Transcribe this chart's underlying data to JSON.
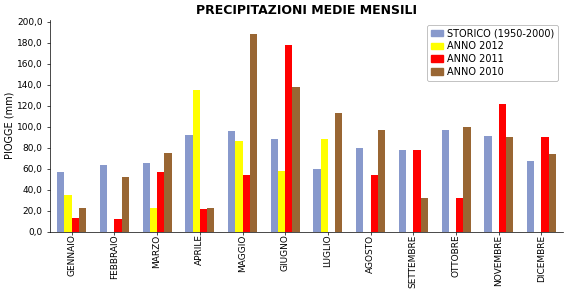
{
  "title": "PRECIPITAZIONI MEDIE MENSILI",
  "ylabel": "PIOGGE (mm)",
  "categories": [
    "GENNAIO",
    "FEBBRAIO",
    "MARZO",
    "APRILE",
    "MAGGIO",
    "GIUGNO",
    "LUGLIO",
    "AGOSTO",
    "SETTEMBRE",
    "OTTOBRE",
    "NOVEMBRE",
    "DICEMBRE"
  ],
  "series": {
    "STORICO (1950-2000)": [
      57,
      64,
      65,
      92,
      96,
      88,
      60,
      80,
      78,
      97,
      91,
      67
    ],
    "ANNO 2012": [
      35,
      0,
      23,
      135,
      86,
      58,
      88,
      0,
      0,
      0,
      0,
      0
    ],
    "ANNO 2011": [
      13,
      12,
      57,
      22,
      54,
      178,
      0,
      54,
      78,
      32,
      122,
      90
    ],
    "ANNO 2010": [
      23,
      52,
      75,
      23,
      188,
      138,
      113,
      97,
      32,
      100,
      90,
      74
    ]
  },
  "colors": {
    "STORICO (1950-2000)": "#8899CC",
    "ANNO 2012": "#FFFF00",
    "ANNO 2011": "#FF0000",
    "ANNO 2010": "#996633"
  },
  "ylim": [
    0,
    200
  ],
  "yticks": [
    0,
    20,
    40,
    60,
    80,
    100,
    120,
    140,
    160,
    180,
    200
  ],
  "ytick_labels": [
    "0,0",
    "20,0",
    "40,0",
    "60,0",
    "80,0",
    "100,0",
    "120,0",
    "140,0",
    "160,0",
    "180,0",
    "200,0"
  ],
  "background_color": "#FFFFFF",
  "title_fontsize": 9,
  "legend_fontsize": 7,
  "axis_label_fontsize": 7,
  "tick_fontsize": 6.5,
  "bar_width": 0.17
}
